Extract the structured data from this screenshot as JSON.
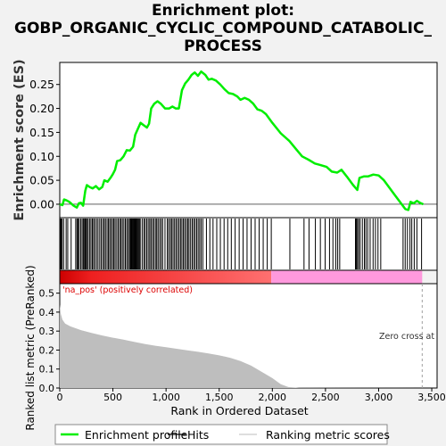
{
  "title": "Enrichment plot:\nGOBP_ORGANIC_CYCLIC_COMPOUND_CATABOLIC_\nPROCESS",
  "colors": {
    "profile": "#00ee00",
    "hits": "#000000",
    "metric_fill": "#bebebe",
    "pos_red": "#dd0000",
    "neg_pink": "#ff99dd",
    "zero_line": "#a0a0a0"
  },
  "chart_data": [
    {
      "panel": "enrichment",
      "type": "line",
      "ylabel": "Enrichment score (ES)",
      "xlim": [
        0,
        3550
      ],
      "ylim": [
        -0.028,
        0.296
      ],
      "yticks": [
        0.0,
        0.05,
        0.1,
        0.15,
        0.2,
        0.25
      ],
      "ytick_labels": [
        "0.00",
        "0.05",
        "0.10",
        "0.15",
        "0.20",
        "0.25"
      ],
      "series": [
        {
          "name": "Enrichment profile",
          "points": [
            [
              0,
              0.0
            ],
            [
              25,
              -0.002
            ],
            [
              40,
              0.01
            ],
            [
              65,
              0.008
            ],
            [
              90,
              0.005
            ],
            [
              130,
              -0.003
            ],
            [
              160,
              -0.007
            ],
            [
              180,
              0.002
            ],
            [
              200,
              0.003
            ],
            [
              220,
              -0.003
            ],
            [
              240,
              0.028
            ],
            [
              255,
              0.04
            ],
            [
              280,
              0.036
            ],
            [
              310,
              0.033
            ],
            [
              340,
              0.038
            ],
            [
              370,
              0.031
            ],
            [
              400,
              0.036
            ],
            [
              420,
              0.05
            ],
            [
              450,
              0.047
            ],
            [
              480,
              0.056
            ],
            [
              500,
              0.063
            ],
            [
              520,
              0.072
            ],
            [
              540,
              0.09
            ],
            [
              570,
              0.092
            ],
            [
              600,
              0.1
            ],
            [
              630,
              0.113
            ],
            [
              660,
              0.112
            ],
            [
              690,
              0.12
            ],
            [
              710,
              0.145
            ],
            [
              740,
              0.16
            ],
            [
              760,
              0.17
            ],
            [
              790,
              0.165
            ],
            [
              820,
              0.16
            ],
            [
              840,
              0.168
            ],
            [
              860,
              0.2
            ],
            [
              890,
              0.21
            ],
            [
              920,
              0.215
            ],
            [
              950,
              0.21
            ],
            [
              990,
              0.2
            ],
            [
              1030,
              0.2
            ],
            [
              1060,
              0.204
            ],
            [
              1090,
              0.2
            ],
            [
              1120,
              0.2
            ],
            [
              1150,
              0.238
            ],
            [
              1180,
              0.252
            ],
            [
              1210,
              0.26
            ],
            [
              1240,
              0.27
            ],
            [
              1270,
              0.275
            ],
            [
              1300,
              0.268
            ],
            [
              1330,
              0.277
            ],
            [
              1370,
              0.27
            ],
            [
              1400,
              0.26
            ],
            [
              1430,
              0.262
            ],
            [
              1470,
              0.258
            ],
            [
              1510,
              0.25
            ],
            [
              1550,
              0.24
            ],
            [
              1590,
              0.232
            ],
            [
              1630,
              0.23
            ],
            [
              1670,
              0.225
            ],
            [
              1700,
              0.218
            ],
            [
              1740,
              0.222
            ],
            [
              1780,
              0.218
            ],
            [
              1820,
              0.21
            ],
            [
              1860,
              0.198
            ],
            [
              1900,
              0.195
            ],
            [
              1940,
              0.188
            ],
            [
              2000,
              0.17
            ],
            [
              2080,
              0.148
            ],
            [
              2160,
              0.132
            ],
            [
              2220,
              0.116
            ],
            [
              2280,
              0.1
            ],
            [
              2340,
              0.093
            ],
            [
              2400,
              0.085
            ],
            [
              2450,
              0.082
            ],
            [
              2510,
              0.078
            ],
            [
              2560,
              0.068
            ],
            [
              2610,
              0.066
            ],
            [
              2650,
              0.072
            ],
            [
              2700,
              0.058
            ],
            [
              2760,
              0.04
            ],
            [
              2800,
              0.03
            ],
            [
              2820,
              0.055
            ],
            [
              2860,
              0.058
            ],
            [
              2900,
              0.058
            ],
            [
              2950,
              0.062
            ],
            [
              3000,
              0.06
            ],
            [
              3050,
              0.05
            ],
            [
              3100,
              0.035
            ],
            [
              3150,
              0.02
            ],
            [
              3200,
              0.005
            ],
            [
              3250,
              -0.01
            ],
            [
              3280,
              -0.012
            ],
            [
              3300,
              0.005
            ],
            [
              3330,
              0.002
            ],
            [
              3360,
              0.007
            ],
            [
              3390,
              0.003
            ],
            [
              3420,
              0.0
            ]
          ]
        }
      ]
    },
    {
      "panel": "hits",
      "type": "scatter",
      "legend_label": "Hits",
      "hit_ranks": [
        4,
        13,
        22,
        36,
        60,
        75,
        107,
        150,
        162,
        172,
        183,
        198,
        211,
        223,
        233,
        239,
        245,
        254,
        266,
        280,
        293,
        306,
        318,
        330,
        346,
        360,
        376,
        390,
        405,
        418,
        430,
        445,
        458,
        470,
        483,
        497,
        509,
        521,
        536,
        550,
        564,
        576,
        589,
        603,
        617,
        630,
        643,
        656,
        664,
        672,
        679,
        686,
        693,
        700,
        706,
        713,
        720,
        727,
        733,
        741,
        749,
        757,
        775,
        791,
        803,
        818,
        832,
        846,
        858,
        872,
        885,
        900,
        912,
        925,
        940,
        954,
        968,
        990,
        1012,
        1025,
        1040,
        1052,
        1066,
        1080,
        1094,
        1108,
        1122,
        1136,
        1149,
        1163,
        1176,
        1190,
        1204,
        1216,
        1231,
        1246,
        1260,
        1273,
        1288,
        1302,
        1316,
        1330,
        1346,
        1380,
        1412,
        1442,
        1477,
        1511,
        1546,
        1580,
        1614,
        1650,
        1688,
        1725,
        1762,
        1800,
        1838,
        1876,
        1914,
        1952,
        1990,
        2165,
        2298,
        2345,
        2405,
        2452,
        2497,
        2538,
        2570,
        2597,
        2615,
        2634,
        2782,
        2790,
        2801,
        2812,
        2826,
        2847,
        2866,
        2880,
        2897,
        2920,
        2948,
        2970,
        2994,
        3020,
        3230,
        3250,
        3271,
        3295,
        3312,
        3335,
        3360,
        3404
      ]
    },
    {
      "panel": "ranked_metric",
      "type": "area",
      "legend_label": "Ranking metric scores",
      "xlabel": "Rank in Ordered Dataset",
      "ylabel": "Ranked list metric (PreRanked)",
      "xlim": [
        0,
        3550
      ],
      "ylim": [
        0,
        0.55
      ],
      "xticks": [
        0,
        500,
        1000,
        1500,
        2000,
        2500,
        3000,
        3500
      ],
      "xtick_labels": [
        "0",
        "500",
        "1,000",
        "1,500",
        "2,000",
        "2,500",
        "3,000",
        "3,500"
      ],
      "yticks": [
        0.0,
        0.1,
        0.2,
        0.3,
        0.4,
        0.5
      ],
      "ytick_labels": [
        "0.0",
        "0.1",
        "0.2",
        "0.3",
        "0.4",
        "0.5"
      ],
      "points": [
        [
          0,
          0.44
        ],
        [
          10,
          0.39
        ],
        [
          25,
          0.36
        ],
        [
          50,
          0.34
        ],
        [
          100,
          0.325
        ],
        [
          200,
          0.305
        ],
        [
          300,
          0.29
        ],
        [
          400,
          0.277
        ],
        [
          500,
          0.265
        ],
        [
          600,
          0.255
        ],
        [
          700,
          0.243
        ],
        [
          800,
          0.232
        ],
        [
          900,
          0.223
        ],
        [
          1000,
          0.215
        ],
        [
          1100,
          0.207
        ],
        [
          1200,
          0.199
        ],
        [
          1300,
          0.191
        ],
        [
          1400,
          0.182
        ],
        [
          1500,
          0.172
        ],
        [
          1600,
          0.16
        ],
        [
          1700,
          0.142
        ],
        [
          1800,
          0.118
        ],
        [
          1900,
          0.085
        ],
        [
          2000,
          0.052
        ],
        [
          2080,
          0.02
        ],
        [
          2150,
          0.005
        ],
        [
          2250,
          0.001
        ],
        [
          3410,
          0.0
        ]
      ],
      "zero_cross_rank": 3410,
      "zero_cross_label": "Zero cross at",
      "pos_label": "'na_pos' (positively correlated)",
      "split_rank": 1990
    }
  ],
  "legend": {
    "items": [
      {
        "label": "Enrichment profile",
        "color": "#00ee00"
      },
      {
        "label": "Hits",
        "color": "#000000"
      },
      {
        "label": "Ranking metric scores",
        "color": "#bebebe"
      }
    ]
  }
}
